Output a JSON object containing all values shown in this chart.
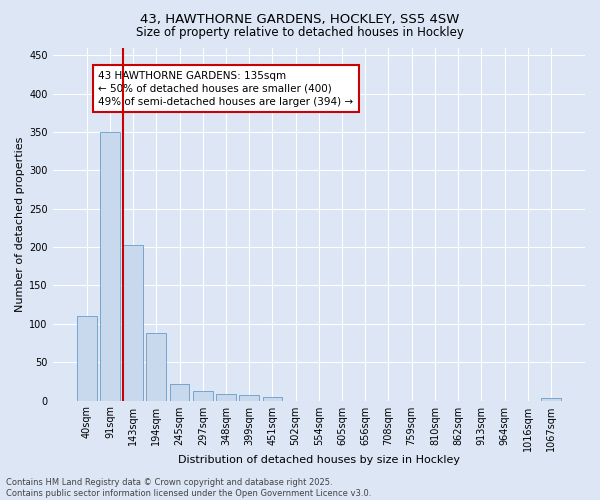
{
  "title_line1": "43, HAWTHORNE GARDENS, HOCKLEY, SS5 4SW",
  "title_line2": "Size of property relative to detached houses in Hockley",
  "xlabel": "Distribution of detached houses by size in Hockley",
  "ylabel": "Number of detached properties",
  "bar_labels": [
    "40sqm",
    "91sqm",
    "143sqm",
    "194sqm",
    "245sqm",
    "297sqm",
    "348sqm",
    "399sqm",
    "451sqm",
    "502sqm",
    "554sqm",
    "605sqm",
    "656sqm",
    "708sqm",
    "759sqm",
    "810sqm",
    "862sqm",
    "913sqm",
    "964sqm",
    "1016sqm",
    "1067sqm"
  ],
  "bar_values": [
    110,
    350,
    203,
    88,
    22,
    13,
    8,
    7,
    5,
    0,
    0,
    0,
    0,
    0,
    0,
    0,
    0,
    0,
    0,
    0,
    3
  ],
  "bar_color": "#c8d9ee",
  "bar_edge_color": "#6a9cc8",
  "highlight_bar_index": 2,
  "highlight_line_color": "#cc0000",
  "ylim": [
    0,
    460
  ],
  "yticks": [
    0,
    50,
    100,
    150,
    200,
    250,
    300,
    350,
    400,
    450
  ],
  "annotation_text": "43 HAWTHORNE GARDENS: 135sqm\n← 50% of detached houses are smaller (400)\n49% of semi-detached houses are larger (394) →",
  "annotation_box_color": "#ffffff",
  "annotation_box_edge": "#cc0000",
  "bg_color": "#dce6f5",
  "plot_bg_color": "#dce6f5",
  "grid_color": "#ffffff",
  "footer_text": "Contains HM Land Registry data © Crown copyright and database right 2025.\nContains public sector information licensed under the Open Government Licence v3.0.",
  "title_fontsize": 9.5,
  "subtitle_fontsize": 8.5,
  "tick_fontsize": 7,
  "ylabel_fontsize": 8,
  "xlabel_fontsize": 8,
  "annotation_fontsize": 7.5,
  "footer_fontsize": 6
}
